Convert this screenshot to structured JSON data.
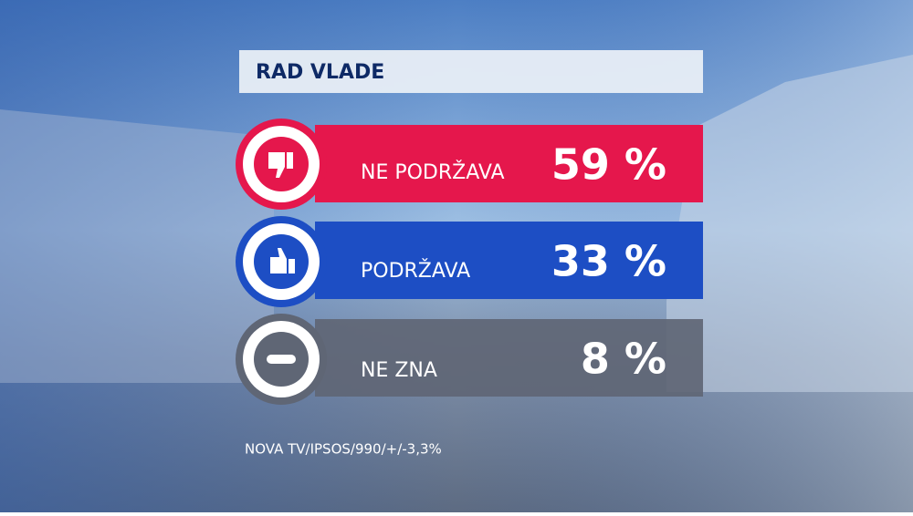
{
  "header": {
    "title": "RAD VLADE"
  },
  "rows": [
    {
      "label": "NE PODRŽAVA",
      "value": "59 %"
    },
    {
      "label": "PODRŽAVA",
      "value": "33 %"
    },
    {
      "label": "NE ZNA",
      "value": "8 %"
    }
  ],
  "footer": {
    "source": "NOVA TV/IPSOS/990/+/-3,3%"
  }
}
